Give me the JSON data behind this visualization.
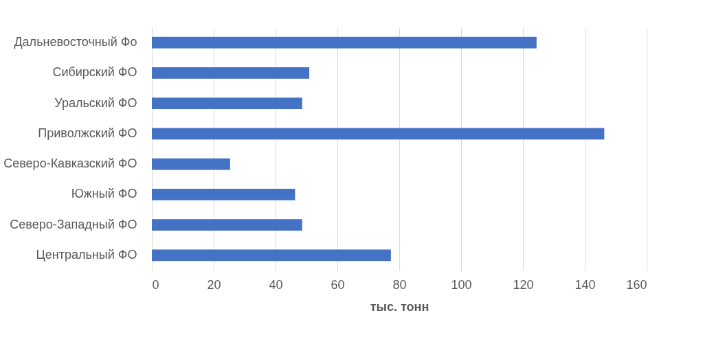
{
  "chart_data": {
    "type": "bar",
    "orientation": "horizontal",
    "xlabel": "тыс. тонн",
    "categories": [
      "Дальневосточный Фо",
      "Сибирский ФО",
      "Уральский ФО",
      "Приволжский ФО",
      "Северо-Кавказский ФО",
      "Южный ФО",
      "Северо-Западный ФО",
      "Центральный ФО"
    ],
    "values": [
      124.4,
      50.9,
      48.6,
      146.3,
      25.3,
      46.3,
      48.6,
      77.3
    ],
    "color": "#4472c4",
    "xlim": [
      0,
      160
    ],
    "xticks": [
      0,
      20,
      40,
      60,
      80,
      100,
      120,
      140,
      160
    ],
    "grid": "x"
  }
}
